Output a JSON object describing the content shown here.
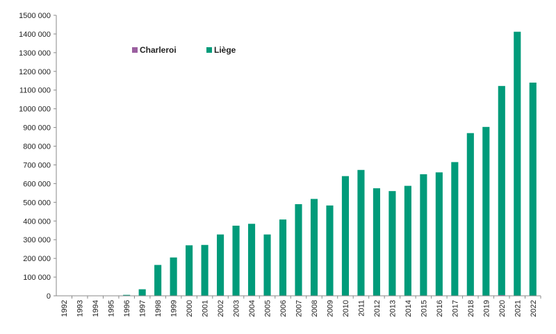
{
  "chart_data": {
    "type": "bar",
    "stacked": true,
    "categories": [
      "1992",
      "1993",
      "1994",
      "1995",
      "1996",
      "1997",
      "1998",
      "1999",
      "2000",
      "2001",
      "2002",
      "2003",
      "2004",
      "2005",
      "2006",
      "2007",
      "2008",
      "2009",
      "2010",
      "2011",
      "2012",
      "2013",
      "2014",
      "2015",
      "2016",
      "2017",
      "2018",
      "2019",
      "2020",
      "2021",
      "2022"
    ],
    "series": [
      {
        "name": "Charleroi",
        "color": "#9b5fa0",
        "values": [
          0,
          0,
          0,
          0,
          0,
          0,
          0,
          0,
          0,
          0,
          0,
          0,
          0,
          0,
          0,
          0,
          0,
          0,
          0,
          0,
          0,
          0,
          0,
          0,
          0,
          0,
          0,
          0,
          4000,
          0,
          0
        ]
      },
      {
        "name": "Liège",
        "color": "#009b7a",
        "values": [
          0,
          0,
          0,
          0,
          5000,
          35000,
          165000,
          205000,
          270000,
          272000,
          328000,
          375000,
          385000,
          328000,
          408000,
          490000,
          518000,
          483000,
          640000,
          673000,
          575000,
          560000,
          588000,
          650000,
          660000,
          715000,
          870000,
          903000,
          1118000,
          1412000,
          1140000
        ]
      }
    ],
    "title": "",
    "xlabel": "",
    "ylabel": "",
    "ylim": [
      0,
      1500000
    ],
    "yticks": [
      "0",
      "100 000",
      "200 000",
      "300 000",
      "400 000",
      "500 000",
      "600 000",
      "700 000",
      "800 000",
      "900 000",
      "1000 000",
      "1100 000",
      "1200 000",
      "1300 000",
      "1400 000",
      "1500 000"
    ],
    "grid": false,
    "legend_position": "top-left"
  }
}
